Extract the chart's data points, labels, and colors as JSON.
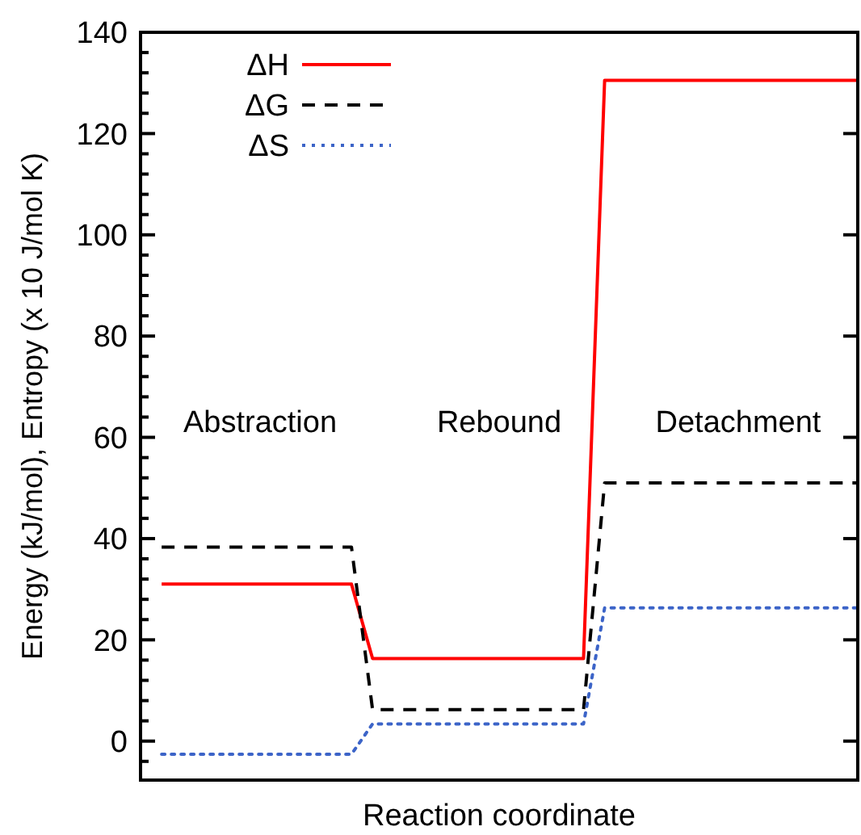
{
  "chart_data": {
    "type": "line",
    "xlabel": "Reaction coordinate",
    "ylabel": "Energy (kJ/mol), Entropy (x 10 J/mol K)",
    "categories": [
      null,
      null,
      null,
      null,
      null,
      null,
      null,
      null,
      null,
      null,
      null,
      null,
      null,
      null,
      null,
      null,
      null,
      null,
      null,
      null,
      null,
      null,
      null,
      null,
      null,
      null,
      null,
      null,
      null,
      null,
      null,
      null,
      null,
      null,
      null
    ],
    "series": [
      {
        "name": "ΔH",
        "color": "#ff0000",
        "line_style": "solid",
        "values": [
          null,
          31,
          31,
          31,
          31,
          31,
          31,
          31,
          31,
          31,
          31,
          16.3,
          16.3,
          16.3,
          16.3,
          16.3,
          16.3,
          16.3,
          16.3,
          16.3,
          16.3,
          16.3,
          130.5,
          130.5,
          130.5,
          130.5,
          130.5,
          130.5,
          130.5,
          130.5,
          130.5,
          130.5,
          130.5,
          130.5,
          130.5
        ]
      },
      {
        "name": "ΔG",
        "color": "#000000",
        "line_style": "dashed",
        "values": [
          null,
          38.3,
          38.3,
          38.3,
          38.3,
          38.3,
          38.3,
          38.3,
          38.3,
          38.3,
          38.3,
          6.2,
          6.2,
          6.2,
          6.2,
          6.2,
          6.2,
          6.2,
          6.2,
          6.2,
          6.2,
          6.2,
          51,
          51,
          51,
          51,
          51,
          51,
          51,
          51,
          51,
          51,
          51,
          51,
          51
        ]
      },
      {
        "name": "ΔS",
        "color": "#3c64c8",
        "line_style": "dotted",
        "values": [
          null,
          -2.6,
          -2.6,
          -2.6,
          -2.6,
          -2.6,
          -2.6,
          -2.6,
          -2.6,
          -2.6,
          -2.6,
          3.4,
          3.4,
          3.4,
          3.4,
          3.4,
          3.4,
          3.4,
          3.4,
          3.4,
          3.4,
          3.4,
          26.3,
          26.3,
          26.3,
          26.3,
          26.3,
          26.3,
          26.3,
          26.3,
          26.3,
          26.3,
          26.3,
          26.3,
          26.3
        ]
      }
    ],
    "ylim": [
      -7.7,
      140
    ],
    "yticks": [
      {
        "value": -4,
        "label": null
      },
      0,
      {
        "value": 4,
        "label": null
      },
      {
        "value": 8,
        "label": null
      },
      {
        "value": 12,
        "label": null
      },
      {
        "value": 16,
        "label": null
      },
      20,
      {
        "value": 24,
        "label": null
      },
      {
        "value": 28,
        "label": null
      },
      {
        "value": 32,
        "label": null
      },
      {
        "value": 36,
        "label": null
      },
      40,
      {
        "value": 44,
        "label": null
      },
      {
        "value": 48,
        "label": null
      },
      {
        "value": 52,
        "label": null
      },
      {
        "value": 56,
        "label": null
      },
      60,
      {
        "value": 64,
        "label": null
      },
      {
        "value": 68,
        "label": null
      },
      {
        "value": 72,
        "label": null
      },
      {
        "value": 76,
        "label": null
      },
      80,
      {
        "value": 84,
        "label": null
      },
      {
        "value": 88,
        "label": null
      },
      {
        "value": 92,
        "label": null
      },
      {
        "value": 96,
        "label": null
      },
      100,
      {
        "value": 104,
        "label": null
      },
      {
        "value": 108,
        "label": null
      },
      {
        "value": 112,
        "label": null
      },
      {
        "value": 116,
        "label": null
      },
      120,
      {
        "value": 124,
        "label": null
      },
      {
        "value": 128,
        "label": null
      },
      {
        "value": 132,
        "label": null
      },
      {
        "value": 136,
        "label": null
      },
      140
    ],
    "tick_labels": "y",
    "grid": false,
    "legend": "top left",
    "annotations": [
      "Abstraction",
      "Rebound",
      "Detachment"
    ]
  }
}
